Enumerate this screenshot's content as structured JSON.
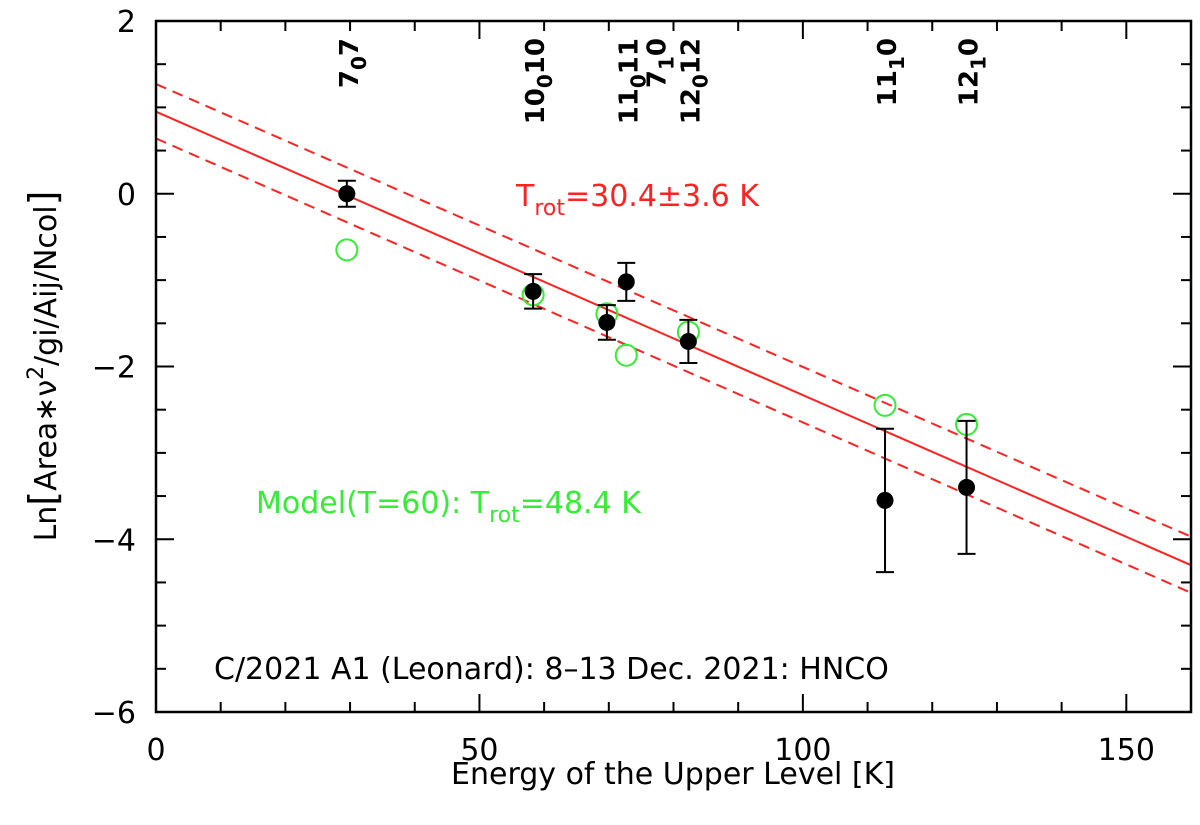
{
  "chart_data": {
    "type": "scatter",
    "title": "C/2021 A1 (Leonard): 8–13 Dec. 2021: HNCO",
    "xlabel": "Energy of the Upper Level [K]",
    "ylabel_parts": {
      "prefix": "Ln",
      "open": "[",
      "body": "Area∗ν",
      "sup": "2",
      "rest": "/gi/Aij/Ncol",
      "close": "]"
    },
    "xlim": [
      0,
      160
    ],
    "ylim": [
      -6,
      2
    ],
    "x_ticks": [
      "0",
      "50",
      "100",
      "150"
    ],
    "y_ticks": [
      "2",
      "0",
      "−2",
      "−4",
      "−6"
    ],
    "x_tick_values": [
      0,
      50,
      100,
      150
    ],
    "y_tick_values": [
      2,
      0,
      -2,
      -4,
      -6
    ],
    "colors": {
      "observed": "#000000",
      "fit": "#ff2222",
      "model": "#33ee33"
    },
    "observed": [
      {
        "x": 29.5,
        "y": 0.0,
        "err": 0.15
      },
      {
        "x": 58.3,
        "y": -1.13,
        "err": 0.2
      },
      {
        "x": 69.7,
        "y": -1.49,
        "err": 0.2
      },
      {
        "x": 72.7,
        "y": -1.02,
        "err": 0.22
      },
      {
        "x": 82.3,
        "y": -1.71,
        "err": 0.25
      },
      {
        "x": 112.7,
        "y": -3.55,
        "err": 0.83
      },
      {
        "x": 125.3,
        "y": -3.4,
        "err": 0.77
      }
    ],
    "model": [
      {
        "x": 29.5,
        "y": -0.65
      },
      {
        "x": 58.3,
        "y": -1.17
      },
      {
        "x": 69.7,
        "y": -1.39
      },
      {
        "x": 72.7,
        "y": -1.87
      },
      {
        "x": 82.3,
        "y": -1.6
      },
      {
        "x": 112.7,
        "y": -2.45
      },
      {
        "x": 125.3,
        "y": -2.67
      }
    ],
    "fit": {
      "center": {
        "y0": 0.95,
        "y160": -4.3
      },
      "upper": {
        "y0": 1.27,
        "y160": -3.97
      },
      "lower": {
        "y0": 0.64,
        "y160": -4.62
      }
    },
    "annotations": {
      "trot_fit": {
        "main": "T",
        "sub": "rot",
        "value": "=30.4±3.6 K"
      },
      "trot_model": {
        "main": "Model(T=60): T",
        "sub": "rot",
        "value": "=48.4 K"
      }
    },
    "transitions": [
      {
        "x": 29.5,
        "lines": [
          {
            "n": "7",
            "ka": "0",
            "kc": "7"
          }
        ]
      },
      {
        "x": 58.3,
        "lines": [
          {
            "n": "10",
            "ka": "0",
            "kc": "10"
          }
        ]
      },
      {
        "x": 72.7,
        "lines": [
          {
            "n": "11",
            "ka": "0",
            "kc": "11"
          },
          {
            "n": "7",
            "ka": "1",
            "kc": "0"
          }
        ]
      },
      {
        "x": 82.3,
        "lines": [
          {
            "n": "12",
            "ka": "0",
            "kc": "12"
          }
        ]
      },
      {
        "x": 112.7,
        "lines": [
          {
            "n": "11",
            "ka": "1",
            "kc": "0"
          }
        ]
      },
      {
        "x": 125.3,
        "lines": [
          {
            "n": "12",
            "ka": "1",
            "kc": "0"
          }
        ]
      }
    ]
  }
}
